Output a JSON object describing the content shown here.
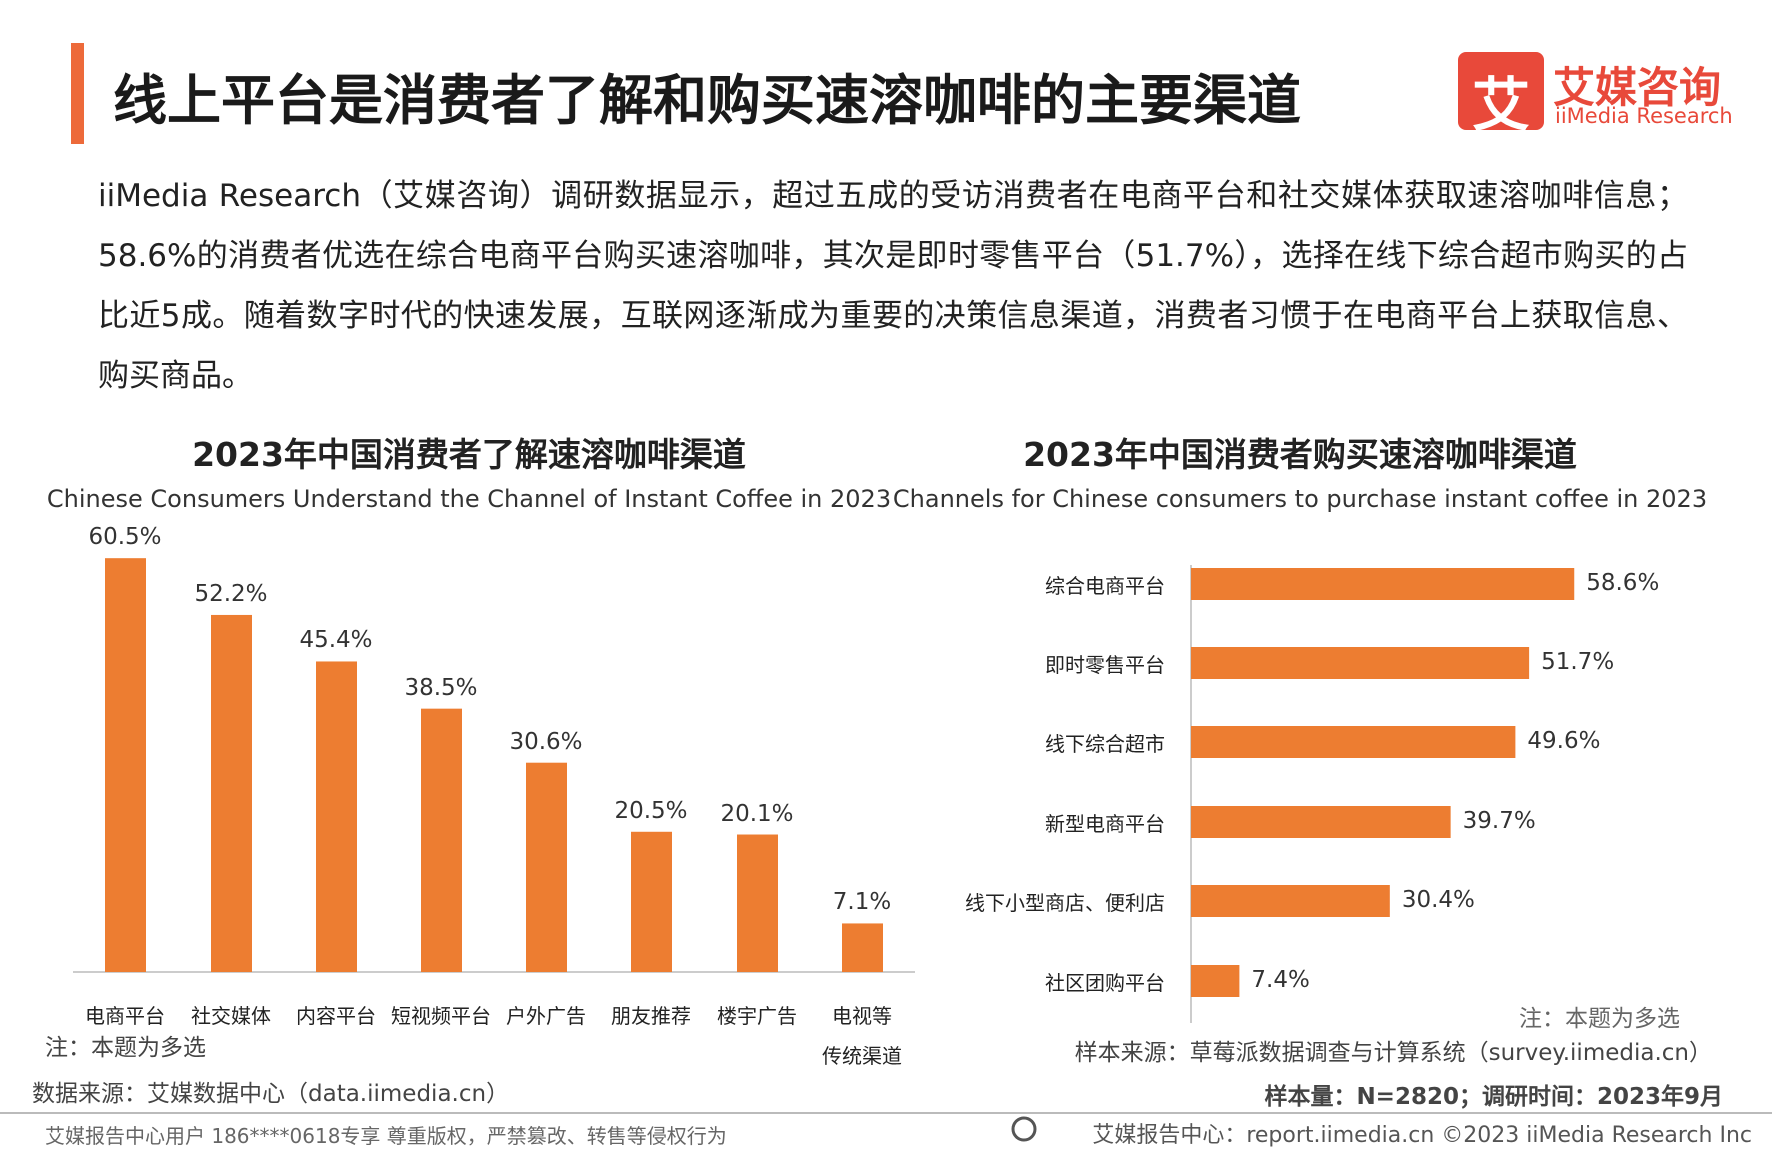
{
  "header": {
    "title": "线上平台是消费者了解和购买速溶咖啡的主要渠道",
    "logo_cn": "艾媒咨询",
    "logo_en": "iiMedia Research",
    "logo_mark": "艾"
  },
  "body": {
    "paragraph": "iiMedia Research（艾媒咨询）调研数据显示，超过五成的受访消费者在电商平台和社交媒体获取速溶咖啡信息；58.6%的消费者优选在综合电商平台购买速溶咖啡，其次是即时零售平台（51.7%），选择在线下综合超市购买的占比近5成。随着数字时代的快速发展，互联网逐渐成为重要的决策信息渠道，消费者习惯于在电商平台上获取信息、购买商品。"
  },
  "chart_data": [
    {
      "type": "bar",
      "title": "2023年中国消费者了解速溶咖啡渠道",
      "subtitle": "Chinese Consumers Understand the Channel of Instant Coffee in 2023",
      "categories": [
        "电商平台",
        "社交媒体",
        "内容平台",
        "短视频平台",
        "户外广告",
        "朋友推荐",
        "楼宇广告",
        "电视等\n传统渠道"
      ],
      "values": [
        60.5,
        52.2,
        45.4,
        38.5,
        30.6,
        20.5,
        20.1,
        7.1
      ],
      "value_labels": [
        "60.5%",
        "52.2%",
        "45.4%",
        "38.5%",
        "30.6%",
        "20.5%",
        "20.1%",
        "7.1%"
      ],
      "color": "#ed7d31",
      "note": "注：本题为多选",
      "source": "数据来源：艾媒数据中心（data.iimedia.cn）"
    },
    {
      "type": "hbar",
      "title": "2023年中国消费者购买速溶咖啡渠道",
      "subtitle": "Channels for Chinese consumers to purchase instant coffee in 2023",
      "categories": [
        "综合电商平台",
        "即时零售平台",
        "线下综合超市",
        "新型电商平台",
        "线下小型商店、便利店",
        "社区团购平台"
      ],
      "values": [
        58.6,
        51.7,
        49.6,
        39.7,
        30.4,
        7.4
      ],
      "value_labels": [
        "58.6%",
        "51.7%",
        "49.6%",
        "39.7%",
        "30.4%",
        "7.4%"
      ],
      "color": "#ed7d31",
      "note": "注：本题为多选",
      "source": "样本来源：草莓派数据调查与计算系统（survey.iimedia.cn）",
      "sample": "样本量：N=2820；调研时间：2023年9月"
    }
  ],
  "footer": {
    "left": "艾媒报告中心用户 186****0618专享 尊重版权，严禁篡改、转售等侵权行为",
    "right": "艾媒报告中心：report.iimedia.cn  ©2023  iiMedia Research  Inc"
  }
}
